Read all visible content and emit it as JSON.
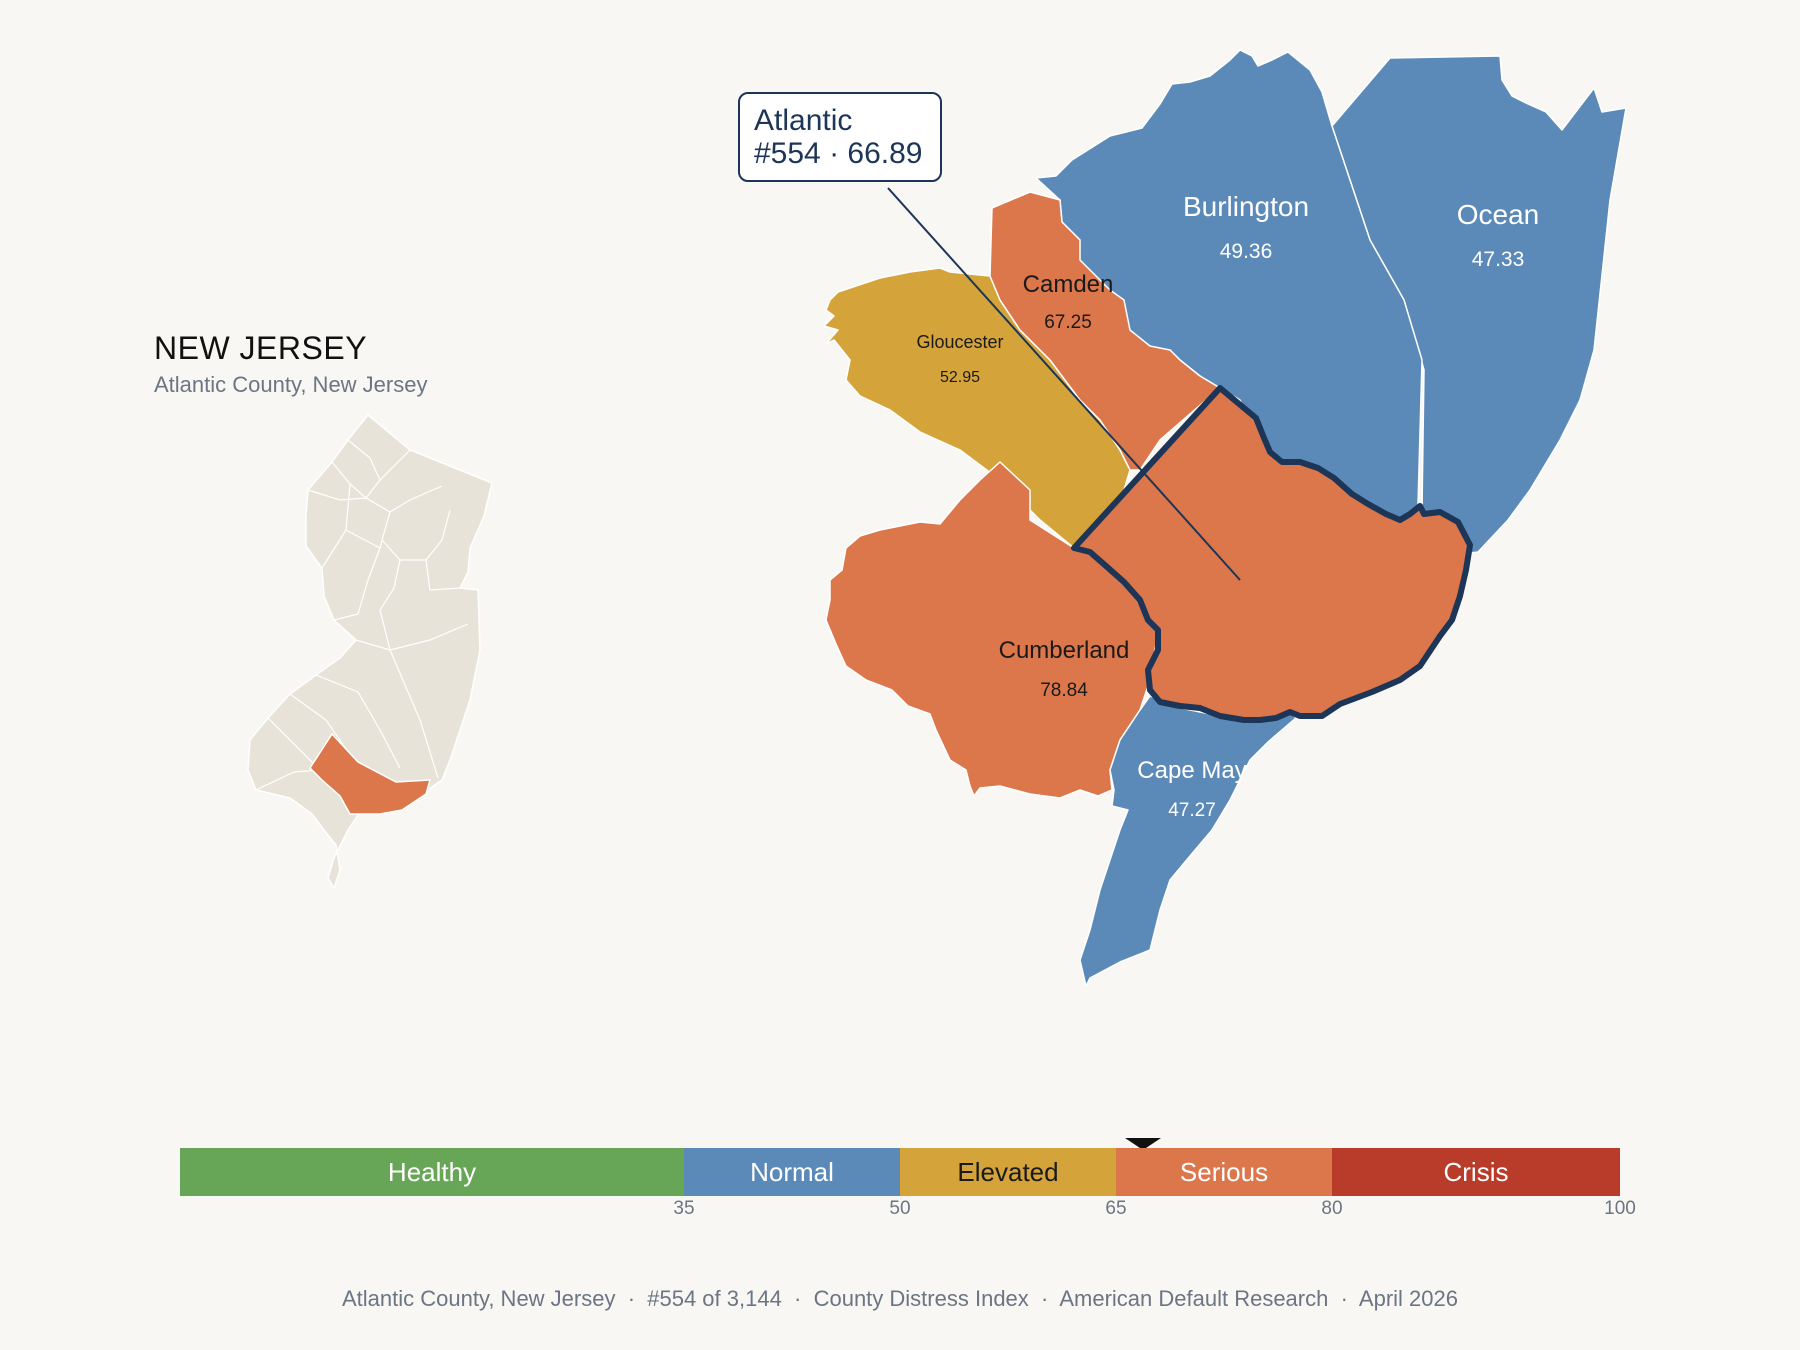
{
  "inset": {
    "state_title": "NEW JERSEY",
    "subtitle": "Atlantic County, New Jersey"
  },
  "tooltip": {
    "county": "Atlantic",
    "rank_score": "#554 · 66.89"
  },
  "counties": [
    {
      "name": "Burlington",
      "score": "49.36",
      "category": "Normal",
      "color": "#5b8ab9"
    },
    {
      "name": "Ocean",
      "score": "47.33",
      "category": "Normal",
      "color": "#5b8ab9"
    },
    {
      "name": "Camden",
      "score": "67.25",
      "category": "Serious",
      "color": "#dc764b"
    },
    {
      "name": "Gloucester",
      "score": "52.95",
      "category": "Elevated",
      "color": "#d4a43b"
    },
    {
      "name": "Cumberland",
      "score": "78.84",
      "category": "Serious",
      "color": "#dc764b"
    },
    {
      "name": "Cape May",
      "score": "47.27",
      "category": "Normal",
      "color": "#5b8ab9"
    },
    {
      "name": "Atlantic",
      "score": "66.89",
      "category": "Serious",
      "color": "#dc764b",
      "selected": true
    }
  ],
  "legend": {
    "segments": [
      {
        "label": "Healthy",
        "color": "#67a656",
        "from": 0,
        "to": 35
      },
      {
        "label": "Normal",
        "color": "#5b8ab9",
        "from": 35,
        "to": 50
      },
      {
        "label": "Elevated",
        "color": "#d4a43b",
        "from": 50,
        "to": 65
      },
      {
        "label": "Serious",
        "color": "#dc764b",
        "from": 65,
        "to": 80
      },
      {
        "label": "Crisis",
        "color": "#b93c2b",
        "from": 80,
        "to": 100
      }
    ],
    "ticks": [
      "35",
      "50",
      "65",
      "80",
      "100"
    ],
    "marker_value": 66.89
  },
  "footer": "Atlantic County, New Jersey  ·  #554 of 3,144  ·  County Distress Index  ·  American Default Research  ·  April 2026",
  "colors": {
    "background": "#f8f7f4",
    "inset_fill": "#e8e3d8",
    "selected_outline": "#1d3557",
    "highlight": "#dc764b"
  }
}
